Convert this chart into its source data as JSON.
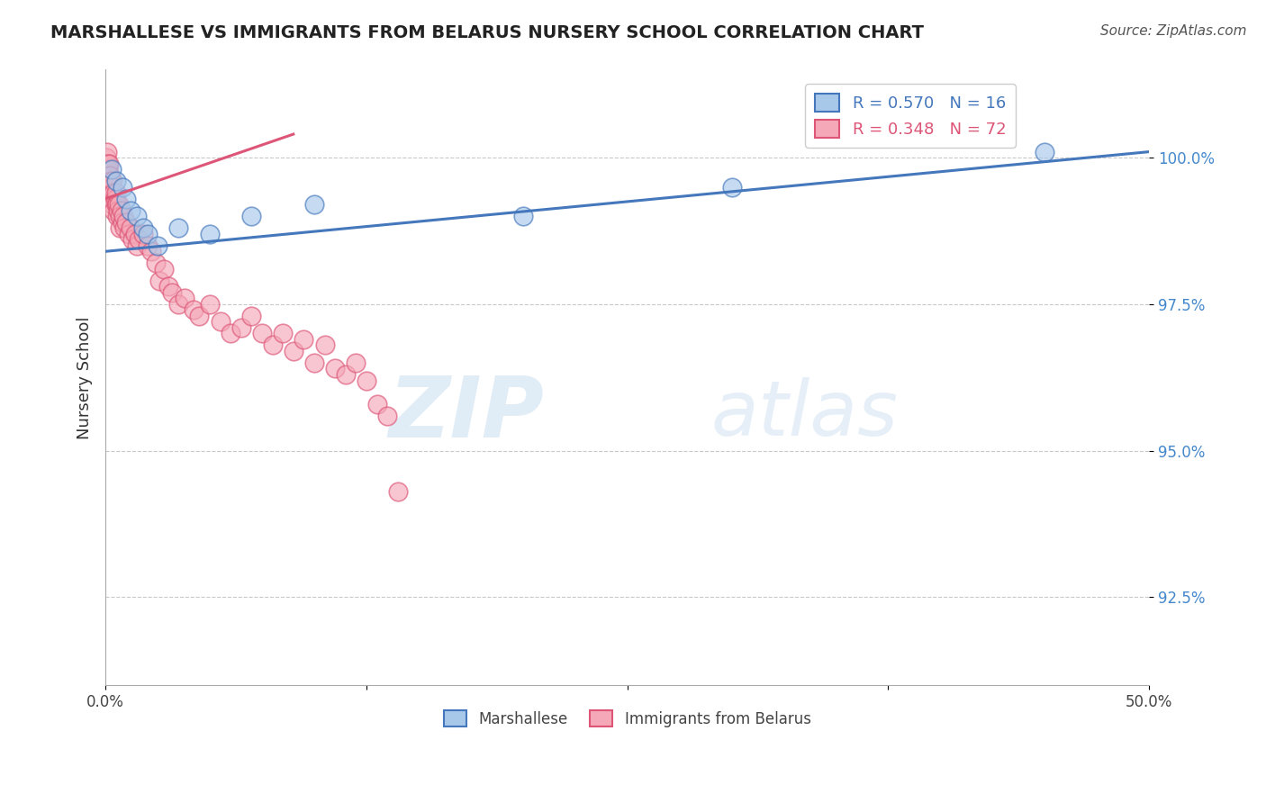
{
  "title": "MARSHALLESE VS IMMIGRANTS FROM BELARUS NURSERY SCHOOL CORRELATION CHART",
  "source_text": "Source: ZipAtlas.com",
  "ylabel": "Nursery School",
  "y_ticks": [
    92.5,
    95.0,
    97.5,
    100.0
  ],
  "y_tick_labels": [
    "92.5%",
    "95.0%",
    "97.5%",
    "100.0%"
  ],
  "ylim": [
    91.0,
    101.5
  ],
  "xlim": [
    0.0,
    50.0
  ],
  "legend_R_blue": "R = 0.570",
  "legend_N_blue": "N = 16",
  "legend_R_pink": "R = 0.348",
  "legend_N_pink": "N = 72",
  "blue_color": "#A8C8EA",
  "pink_color": "#F4A8B8",
  "blue_line_color": "#4477BB",
  "pink_line_color": "#DD5577",
  "watermark_zip": "ZIP",
  "watermark_atlas": "atlas",
  "blue_scatter_x": [
    0.3,
    0.5,
    0.8,
    1.0,
    1.2,
    1.5,
    1.8,
    2.0,
    2.5,
    3.5,
    5.0,
    7.0,
    10.0,
    20.0,
    30.0,
    45.0
  ],
  "blue_scatter_y": [
    99.8,
    99.6,
    99.5,
    99.3,
    99.1,
    99.0,
    98.8,
    98.7,
    98.5,
    98.8,
    98.7,
    99.0,
    99.2,
    99.0,
    99.5,
    100.1
  ],
  "pink_scatter_x": [
    0.05,
    0.05,
    0.08,
    0.08,
    0.1,
    0.1,
    0.12,
    0.12,
    0.15,
    0.15,
    0.18,
    0.2,
    0.2,
    0.25,
    0.25,
    0.3,
    0.3,
    0.35,
    0.35,
    0.4,
    0.4,
    0.45,
    0.5,
    0.5,
    0.55,
    0.55,
    0.6,
    0.65,
    0.7,
    0.7,
    0.75,
    0.8,
    0.85,
    0.9,
    1.0,
    1.1,
    1.2,
    1.3,
    1.4,
    1.5,
    1.6,
    1.8,
    2.0,
    2.2,
    2.4,
    2.6,
    2.8,
    3.0,
    3.2,
    3.5,
    3.8,
    4.2,
    4.5,
    5.0,
    5.5,
    6.0,
    6.5,
    7.0,
    7.5,
    8.0,
    8.5,
    9.0,
    9.5,
    10.0,
    10.5,
    11.0,
    11.5,
    12.0,
    12.5,
    13.0,
    13.5,
    14.0
  ],
  "pink_scatter_y": [
    99.8,
    100.0,
    99.9,
    100.1,
    99.7,
    99.9,
    99.6,
    99.8,
    99.5,
    99.7,
    99.9,
    99.5,
    99.7,
    99.4,
    99.6,
    99.3,
    99.5,
    99.6,
    99.2,
    99.4,
    99.1,
    99.3,
    99.2,
    99.4,
    99.0,
    99.2,
    99.1,
    99.2,
    99.0,
    98.8,
    99.1,
    98.9,
    99.0,
    98.8,
    98.9,
    98.7,
    98.8,
    98.6,
    98.7,
    98.5,
    98.6,
    98.7,
    98.5,
    98.4,
    98.2,
    97.9,
    98.1,
    97.8,
    97.7,
    97.5,
    97.6,
    97.4,
    97.3,
    97.5,
    97.2,
    97.0,
    97.1,
    97.3,
    97.0,
    96.8,
    97.0,
    96.7,
    96.9,
    96.5,
    96.8,
    96.4,
    96.3,
    96.5,
    96.2,
    95.8,
    95.6,
    94.3
  ],
  "blue_trendline_x": [
    0.0,
    50.0
  ],
  "blue_trendline_y": [
    98.4,
    100.1
  ],
  "pink_trendline_x": [
    0.0,
    9.0
  ],
  "pink_trendline_y": [
    99.3,
    100.4
  ]
}
